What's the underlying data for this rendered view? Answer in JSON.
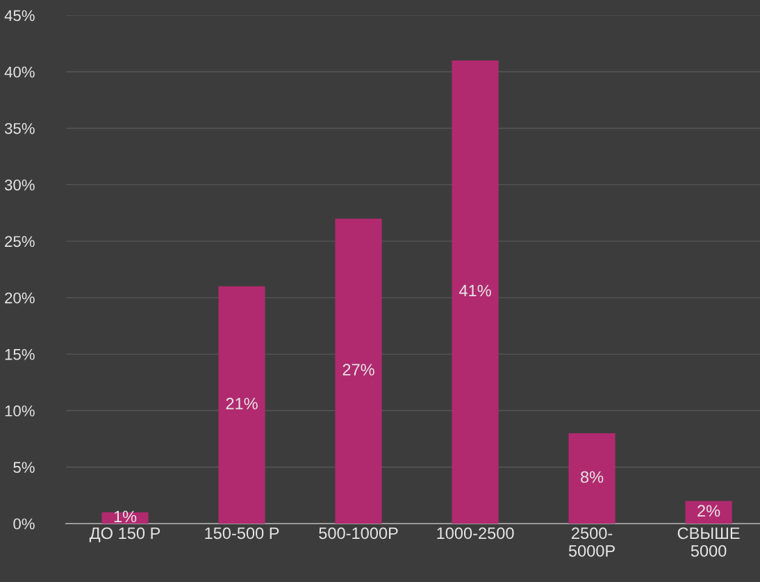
{
  "chart_data": {
    "type": "bar",
    "categories": [
      "ДО 150 Р",
      "150-500 Р",
      "500-1000Р",
      "1000-2500",
      "2500-\n5000Р",
      "СВЫШЕ\n5000"
    ],
    "values": [
      1,
      21,
      27,
      41,
      8,
      2
    ],
    "color": "#b12a6f",
    "data_labels": true,
    "value_labels": [
      "1%",
      "21%",
      "27%",
      "41%",
      "8%",
      "2%"
    ],
    "ylim": [
      0,
      45
    ],
    "yticks": [
      {
        "value": 0,
        "label": "0%"
      },
      {
        "value": 5,
        "label": "5%"
      },
      {
        "value": 10,
        "label": "10%"
      },
      {
        "value": 15,
        "label": "15%"
      },
      {
        "value": 20,
        "label": "20%"
      },
      {
        "value": 25,
        "label": "25%"
      },
      {
        "value": 30,
        "label": "30%"
      },
      {
        "value": 35,
        "label": "35%"
      },
      {
        "value": 40,
        "label": "40%"
      },
      {
        "value": 45,
        "label": "45%"
      }
    ],
    "grid": "y",
    "legend": false
  }
}
